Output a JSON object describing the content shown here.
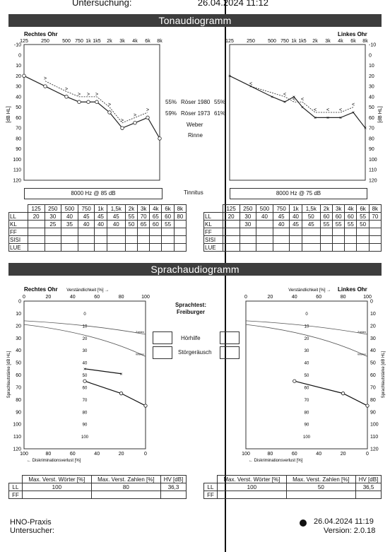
{
  "header": {
    "exam": "Untersuchung:",
    "datetime": "26.04.2024 11:12"
  },
  "tone": {
    "title": "Tonaudiogramm",
    "right_label": "Rechtes Ohr",
    "left_label": "Linkes Ohr",
    "freq_labels": [
      "125",
      "250",
      "500",
      "750",
      "1k",
      "1k5",
      "2k",
      "3k",
      "4k",
      "6k",
      "8k"
    ],
    "db_ticks": [
      "-10",
      "0",
      "10",
      "20",
      "30",
      "40",
      "50",
      "60",
      "70",
      "80",
      "90",
      "100",
      "110",
      "120"
    ],
    "unit": "[dB HL]",
    "middle": {
      "roser1980_r": "55%",
      "roser1980": "Röser 1980",
      "roser1980_l": "55%",
      "roser1973_r": "59%",
      "roser1973": "Röser 1973",
      "roser1973_l": "61%",
      "weber": "Weber",
      "rinne": "Rinne",
      "tinnitus": "Tinnitus"
    },
    "tinnitus_right": "8000 Hz @ 85 dB",
    "tinnitus_left": "8000 Hz @ 75 dB",
    "table_header": [
      "",
      "125",
      "250",
      "500",
      "750",
      "1k",
      "1,5k",
      "2k",
      "3k",
      "4k",
      "6k",
      "8k"
    ],
    "right_rows": [
      [
        "LL",
        "20",
        "30",
        "40",
        "45",
        "45",
        "45",
        "55",
        "70",
        "65",
        "60",
        "80"
      ],
      [
        "KL",
        "",
        "25",
        "35",
        "40",
        "40",
        "40",
        "50",
        "65",
        "60",
        "55",
        ""
      ],
      [
        "FF",
        "",
        "",
        "",
        "",
        "",
        "",
        "",
        "",
        "",
        "",
        ""
      ],
      [
        "SISI",
        "",
        "",
        "",
        "",
        "",
        "",
        "",
        "",
        "",
        "",
        ""
      ],
      [
        "LUE",
        "",
        "",
        "",
        "",
        "",
        "",
        "",
        "",
        "",
        "",
        ""
      ]
    ],
    "left_rows": [
      [
        "LL",
        "20",
        "30",
        "40",
        "45",
        "40",
        "50",
        "60",
        "60",
        "60",
        "55",
        "70"
      ],
      [
        "KL",
        "",
        "30",
        "",
        "40",
        "45",
        "45",
        "55",
        "55",
        "55",
        "50",
        ""
      ],
      [
        "FF",
        "",
        "",
        "",
        "",
        "",
        "",
        "",
        "",
        "",
        "",
        ""
      ],
      [
        "SISI",
        "",
        "",
        "",
        "",
        "",
        "",
        "",
        "",
        "",
        "",
        ""
      ],
      [
        "LUE",
        "",
        "",
        "",
        "",
        "",
        "",
        "",
        "",
        "",
        "",
        ""
      ]
    ]
  },
  "chart_data": [
    {
      "type": "line",
      "title": "Rechtes Ohr",
      "ylabel": "[dB HL]",
      "ylim": [
        120,
        -10
      ],
      "x": [
        "125",
        "250",
        "500",
        "750",
        "1k",
        "1k5",
        "2k",
        "3k",
        "4k",
        "6k",
        "8k"
      ],
      "series": [
        {
          "name": "LL",
          "values": [
            20,
            30,
            40,
            45,
            45,
            45,
            55,
            70,
            65,
            60,
            80
          ]
        },
        {
          "name": "KL",
          "values": [
            null,
            25,
            35,
            40,
            40,
            40,
            50,
            65,
            60,
            55,
            null
          ]
        }
      ]
    },
    {
      "type": "line",
      "title": "Linkes Ohr",
      "ylabel": "[dB HL]",
      "ylim": [
        120,
        -10
      ],
      "x": [
        "125",
        "250",
        "500",
        "750",
        "1k",
        "1k5",
        "2k",
        "3k",
        "4k",
        "6k",
        "8k"
      ],
      "series": [
        {
          "name": "LL",
          "values": [
            20,
            30,
            40,
            45,
            40,
            50,
            60,
            60,
            60,
            55,
            70
          ]
        },
        {
          "name": "KL",
          "values": [
            null,
            30,
            null,
            40,
            45,
            45,
            55,
            55,
            55,
            50,
            null
          ]
        }
      ]
    },
    {
      "type": "line",
      "title": "Rechtes Ohr",
      "xlabel": "Verständlichkeit [%]",
      "ylabel": "Sprachlautstärke [dB HL]",
      "xlim": [
        0,
        100
      ],
      "ylim": [
        120,
        0
      ],
      "series": [
        {
          "name": "Zahlen",
          "points": [
            [
              50,
              55
            ],
            [
              80,
              59
            ]
          ]
        },
        {
          "name": "Wörter",
          "points": [
            [
              50,
              65
            ],
            [
              80,
              75
            ],
            [
              100,
              85
            ]
          ]
        }
      ]
    },
    {
      "type": "line",
      "title": "Linkes Ohr",
      "xlabel": "Verständlichkeit [%]",
      "ylabel": "Sprachlautstärke [dB HL]",
      "xlim": [
        0,
        100
      ],
      "ylim": [
        120,
        0
      ],
      "series": [
        {
          "name": "Wörter",
          "points": [
            [
              40,
              65
            ],
            [
              80,
              75
            ],
            [
              100,
              85
            ]
          ]
        }
      ]
    }
  ],
  "speech": {
    "title": "Sprachaudiogramm",
    "right_label": "Rechtes Ohr",
    "left_label": "Linkes Ohr",
    "top_axis": "Verständlichkeit [%] →",
    "bottom_axis": "← Diskriminationsverlust [%]",
    "ylabel": "Sprachlautstärke [dB HL]",
    "top_ticks": [
      "0",
      "20",
      "40",
      "60",
      "80",
      "100"
    ],
    "bottom_ticks": [
      "100",
      "80",
      "60",
      "40",
      "20",
      "0"
    ],
    "y_ticks": [
      "0",
      "10",
      "20",
      "30",
      "40",
      "50",
      "60",
      "70",
      "80",
      "90",
      "100",
      "110",
      "120"
    ],
    "mid_ticks": [
      "0",
      "10",
      "20",
      "30",
      "40",
      "50",
      "60",
      "70",
      "80",
      "90",
      "100"
    ],
    "zahlen": "Zahlen",
    "worter": "Wörter",
    "sprachtest": "Sprachtest:",
    "freiburger": "Freiburger",
    "hoerhilfe": "Hörhilfe",
    "stoergeraeusch": "Störgeräusch",
    "result_headers": [
      "Max. Verst. Wörter [%]",
      "Max. Verst. Zahlen [%]",
      "HV [dB]"
    ],
    "right_results": {
      "row": "LL",
      "words": "100",
      "numbers": "80",
      "hv": "36,3"
    },
    "left_results": {
      "row": "LL",
      "words": "100",
      "numbers": "50",
      "hv": "36,5"
    },
    "ff": "FF"
  },
  "footer": {
    "practice": "HNO-Praxis",
    "examiner": "Untersucher:",
    "datetime": "26.04.2024 11:19",
    "version": "Version: 2.0.18"
  }
}
